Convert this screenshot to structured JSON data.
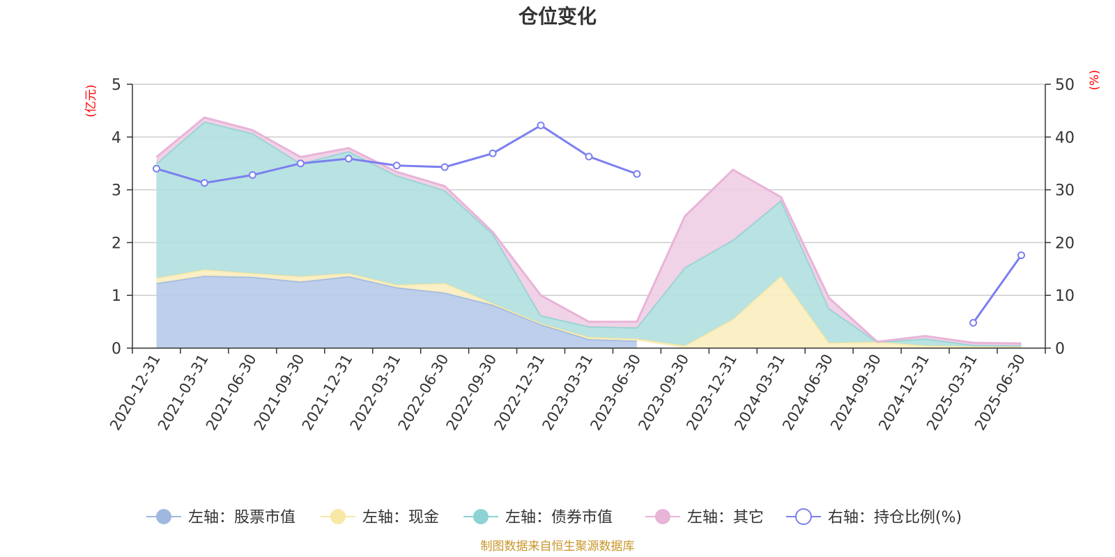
{
  "chart_data": {
    "type": "area",
    "title": "仓位变化",
    "left_axis_unit": "(亿元)",
    "right_axis_unit": "(%)",
    "categories": [
      "2020-12-31",
      "2021-03-31",
      "2021-06-30",
      "2021-09-30",
      "2021-12-31",
      "2022-03-31",
      "2022-06-30",
      "2022-09-30",
      "2022-12-31",
      "2023-03-31",
      "2023-06-30",
      "2023-09-30",
      "2023-12-31",
      "2024-03-31",
      "2024-06-30",
      "2024-09-30",
      "2024-12-31",
      "2025-03-31",
      "2025-06-30"
    ],
    "ylim_left": [
      0,
      5
    ],
    "yticks_left": [
      "0",
      "1",
      "2",
      "3",
      "4",
      "5"
    ],
    "ylim_right": [
      0,
      50
    ],
    "yticks_right": [
      "0",
      "10",
      "20",
      "30",
      "40",
      "50"
    ],
    "grid": true,
    "stacked": true,
    "series": [
      {
        "name": "左轴：股票市值",
        "axis": "left",
        "type": "area",
        "color": "#9fb8e0",
        "fill": "#b8cbe9",
        "values": [
          1.23,
          1.37,
          1.35,
          1.26,
          1.36,
          1.15,
          1.05,
          0.82,
          0.45,
          0.17,
          0.14,
          null,
          null,
          null,
          null,
          null,
          null,
          null,
          null
        ]
      },
      {
        "name": "左轴：现金",
        "axis": "left",
        "type": "area",
        "color": "#f7e8a6",
        "fill": "#faeec0",
        "values": [
          0.1,
          0.12,
          0.07,
          0.1,
          0.06,
          0.05,
          0.18,
          0.03,
          0.02,
          0.04,
          0.04,
          0.05,
          0.55,
          1.37,
          0.1,
          0.12,
          0.05,
          0.03,
          0.03
        ]
      },
      {
        "name": "左轴：债券市值",
        "axis": "left",
        "type": "area",
        "color": "#8ed3d3",
        "fill": "#b3e0e0",
        "values": [
          2.17,
          2.8,
          2.65,
          2.14,
          2.31,
          2.07,
          1.76,
          1.32,
          0.15,
          0.2,
          0.21,
          1.48,
          1.5,
          1.43,
          0.65,
          0.0,
          0.13,
          0.03,
          0.02
        ]
      },
      {
        "name": "左轴：其它",
        "axis": "left",
        "type": "area",
        "color": "#e8b4d8",
        "fill": "#f0cfe5",
        "values": [
          0.12,
          0.08,
          0.06,
          0.12,
          0.06,
          0.07,
          0.08,
          0.03,
          0.38,
          0.09,
          0.11,
          0.97,
          1.33,
          0.06,
          0.2,
          0.0,
          0.05,
          0.04,
          0.04
        ]
      },
      {
        "name": "右轴：持仓比例(%)",
        "axis": "right",
        "type": "line",
        "color": "#7b7fef",
        "values": [
          34,
          31.3,
          32.8,
          35,
          35.9,
          34.6,
          34.3,
          36.9,
          42.2,
          36.3,
          33,
          null,
          null,
          null,
          null,
          null,
          null,
          4.8,
          17.6
        ]
      }
    ],
    "legend_position": "bottom"
  },
  "source_note": "制图数据来自恒生聚源数据库"
}
